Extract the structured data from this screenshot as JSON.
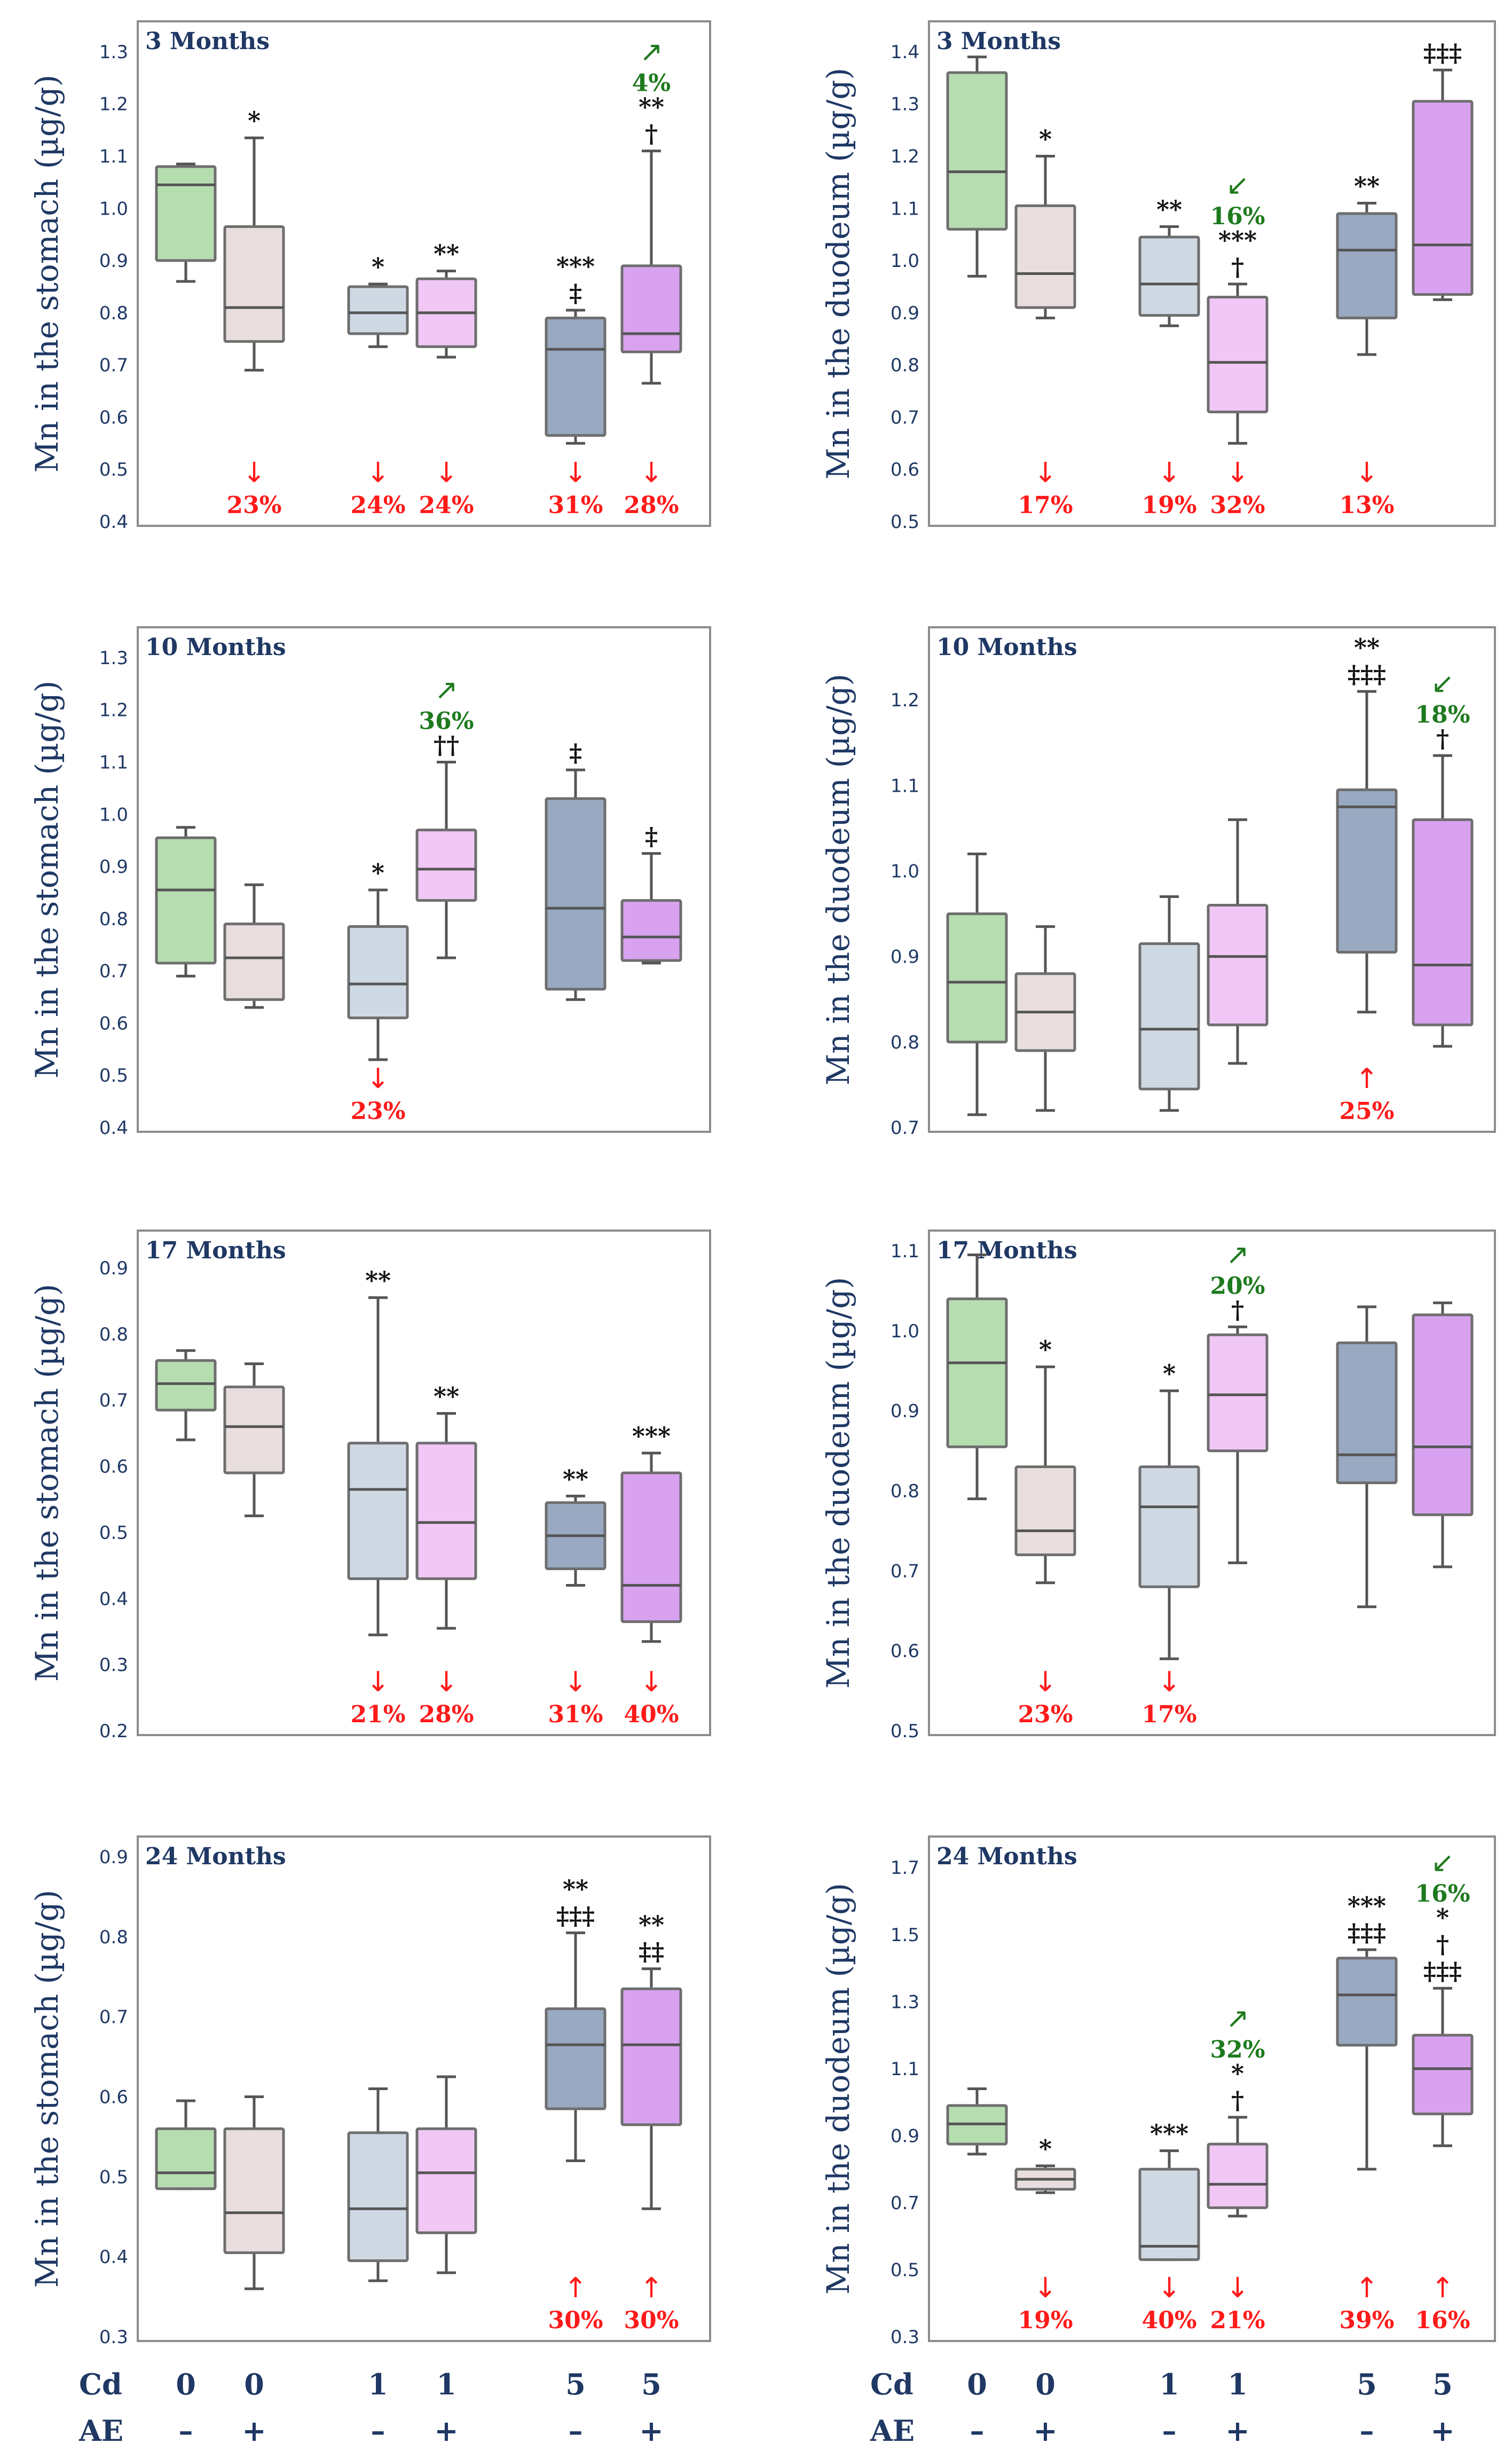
{
  "colors": {
    "g0m": "#b6ddb0",
    "g0p": "#e8dede",
    "g1m": "#cfd9e3",
    "g1p": "#f0c7f5",
    "g5m": "#98a9c1",
    "g5p": "#d8a2f0",
    "axis_text": "#1f3864",
    "red": "#ff1a1a",
    "green": "#1e7a1e"
  },
  "x_axis": {
    "cd_label": "Cd",
    "ae_label": "AE",
    "cd_values": [
      "0",
      "0",
      "1",
      "1",
      "5",
      "5"
    ],
    "ae_values": [
      "–",
      "+",
      "–",
      "+",
      "–",
      "+"
    ]
  },
  "chart_data": [
    {
      "type": "box",
      "title": "3 Months",
      "ylabel": "Mn in the stomach (µg/g)",
      "ylim": [
        0.4,
        1.35
      ],
      "yticks": [
        "0.4",
        "0.5",
        "0.6",
        "0.7",
        "0.8",
        "0.9",
        "1.0",
        "1.1",
        "1.2",
        "1.3"
      ],
      "groups": [
        {
          "min": 0.86,
          "q1": 0.9,
          "median": 1.045,
          "q3": 1.08,
          "max": 1.085
        },
        {
          "min": 0.69,
          "q1": 0.745,
          "median": 0.81,
          "q3": 0.965,
          "max": 1.135,
          "sig": [
            "*"
          ],
          "red": {
            "dir": "↓",
            "pct": "23%"
          }
        },
        {
          "min": 0.735,
          "q1": 0.76,
          "median": 0.8,
          "q3": 0.85,
          "max": 0.855,
          "sig": [
            "*"
          ],
          "red": {
            "dir": "↓",
            "pct": "24%"
          }
        },
        {
          "min": 0.715,
          "q1": 0.735,
          "median": 0.8,
          "q3": 0.865,
          "max": 0.88,
          "sig": [
            "**"
          ],
          "red": {
            "dir": "↓",
            "pct": "24%"
          }
        },
        {
          "min": 0.55,
          "q1": 0.565,
          "median": 0.73,
          "q3": 0.79,
          "max": 0.805,
          "sig": [
            "***",
            "‡"
          ],
          "red": {
            "dir": "↓",
            "pct": "31%"
          }
        },
        {
          "min": 0.665,
          "q1": 0.725,
          "median": 0.76,
          "q3": 0.89,
          "max": 1.11,
          "sig": [
            "**",
            "†"
          ],
          "green": {
            "dir": "↗",
            "pct": "4%"
          },
          "red": {
            "dir": "↓",
            "pct": "28%"
          }
        }
      ]
    },
    {
      "type": "box",
      "title": "3 Months",
      "ylabel": "Mn in the duodeum (µg/g)",
      "ylim": [
        0.5,
        1.45
      ],
      "yticks": [
        "0.5",
        "0.6",
        "0.7",
        "0.8",
        "0.9",
        "1.0",
        "1.1",
        "1.2",
        "1.3",
        "1.4"
      ],
      "groups": [
        {
          "min": 0.97,
          "q1": 1.06,
          "median": 1.17,
          "q3": 1.36,
          "max": 1.39
        },
        {
          "min": 0.89,
          "q1": 0.91,
          "median": 0.975,
          "q3": 1.105,
          "max": 1.2,
          "sig": [
            "*"
          ],
          "red": {
            "dir": "↓",
            "pct": "17%"
          }
        },
        {
          "min": 0.875,
          "q1": 0.895,
          "median": 0.955,
          "q3": 1.045,
          "max": 1.065,
          "sig": [
            "**"
          ],
          "red": {
            "dir": "↓",
            "pct": "19%"
          }
        },
        {
          "min": 0.65,
          "q1": 0.71,
          "median": 0.805,
          "q3": 0.93,
          "max": 0.955,
          "sig": [
            "***",
            "†"
          ],
          "green": {
            "dir": "↙",
            "pct": "16%"
          },
          "red": {
            "dir": "↓",
            "pct": "32%"
          }
        },
        {
          "min": 0.82,
          "q1": 0.89,
          "median": 1.02,
          "q3": 1.09,
          "max": 1.11,
          "sig": [
            "**"
          ],
          "red": {
            "dir": "↓",
            "pct": "13%"
          }
        },
        {
          "min": 0.925,
          "q1": 0.935,
          "median": 1.03,
          "q3": 1.305,
          "max": 1.365,
          "sig": [
            "‡‡‡"
          ]
        }
      ]
    },
    {
      "type": "box",
      "title": "10 Months",
      "ylabel": "Mn in the stomach (µg/g)",
      "ylim": [
        0.4,
        1.35
      ],
      "yticks": [
        "0.4",
        "0.5",
        "0.6",
        "0.7",
        "0.8",
        "0.9",
        "1.0",
        "1.1",
        "1.2",
        "1.3"
      ],
      "groups": [
        {
          "min": 0.69,
          "q1": 0.715,
          "median": 0.855,
          "q3": 0.955,
          "max": 0.975
        },
        {
          "min": 0.63,
          "q1": 0.645,
          "median": 0.725,
          "q3": 0.79,
          "max": 0.865
        },
        {
          "min": 0.53,
          "q1": 0.61,
          "median": 0.675,
          "q3": 0.785,
          "max": 0.855,
          "sig": [
            "*"
          ],
          "red": {
            "dir": "↓",
            "pct": "23%"
          }
        },
        {
          "min": 0.725,
          "q1": 0.835,
          "median": 0.895,
          "q3": 0.97,
          "max": 1.1,
          "sig": [
            "††"
          ],
          "green": {
            "dir": "↗",
            "pct": "36%"
          }
        },
        {
          "min": 0.645,
          "q1": 0.665,
          "median": 0.82,
          "q3": 1.03,
          "max": 1.085,
          "sig": [
            "‡"
          ]
        },
        {
          "min": 0.715,
          "q1": 0.72,
          "median": 0.765,
          "q3": 0.835,
          "max": 0.925,
          "sig": [
            "‡"
          ]
        }
      ]
    },
    {
      "type": "box",
      "title": "10 Months",
      "ylabel": "Mn in the duodeum (µg/g)",
      "ylim": [
        0.7,
        1.28
      ],
      "yticks": [
        "0.7",
        "0.8",
        "0.9",
        "1.0",
        "1.1",
        "1.2"
      ],
      "groups": [
        {
          "min": 0.715,
          "q1": 0.8,
          "median": 0.87,
          "q3": 0.95,
          "max": 1.02
        },
        {
          "min": 0.72,
          "q1": 0.79,
          "median": 0.835,
          "q3": 0.88,
          "max": 0.935
        },
        {
          "min": 0.72,
          "q1": 0.745,
          "median": 0.815,
          "q3": 0.915,
          "max": 0.97
        },
        {
          "min": 0.775,
          "q1": 0.82,
          "median": 0.9,
          "q3": 0.96,
          "max": 1.06
        },
        {
          "min": 0.835,
          "q1": 0.905,
          "median": 1.075,
          "q3": 1.095,
          "max": 1.21,
          "sig": [
            "**",
            "‡‡‡"
          ],
          "red": {
            "dir": "↑",
            "pct": "25%"
          }
        },
        {
          "min": 0.795,
          "q1": 0.82,
          "median": 0.89,
          "q3": 1.06,
          "max": 1.135,
          "sig": [
            "†"
          ],
          "green": {
            "dir": "↙",
            "pct": "18%"
          }
        }
      ]
    },
    {
      "type": "box",
      "title": "17 Months",
      "ylabel": "Mn in the stomach (µg/g)",
      "ylim": [
        0.2,
        0.95
      ],
      "yticks": [
        "0.2",
        "0.3",
        "0.4",
        "0.5",
        "0.6",
        "0.7",
        "0.8",
        "0.9"
      ],
      "groups": [
        {
          "min": 0.64,
          "q1": 0.685,
          "median": 0.725,
          "q3": 0.76,
          "max": 0.775
        },
        {
          "min": 0.525,
          "q1": 0.59,
          "median": 0.66,
          "q3": 0.72,
          "max": 0.755
        },
        {
          "min": 0.345,
          "q1": 0.43,
          "median": 0.565,
          "q3": 0.635,
          "max": 0.855,
          "sig": [
            "**"
          ],
          "red": {
            "dir": "↓",
            "pct": "21%"
          }
        },
        {
          "min": 0.355,
          "q1": 0.43,
          "median": 0.515,
          "q3": 0.635,
          "max": 0.68,
          "sig": [
            "**"
          ],
          "red": {
            "dir": "↓",
            "pct": "28%"
          }
        },
        {
          "min": 0.42,
          "q1": 0.445,
          "median": 0.495,
          "q3": 0.545,
          "max": 0.555,
          "sig": [
            "**"
          ],
          "red": {
            "dir": "↓",
            "pct": "31%"
          }
        },
        {
          "min": 0.335,
          "q1": 0.365,
          "median": 0.42,
          "q3": 0.59,
          "max": 0.62,
          "sig": [
            "***"
          ],
          "red": {
            "dir": "↓",
            "pct": "40%"
          }
        }
      ]
    },
    {
      "type": "box",
      "title": "17 Months",
      "ylabel": "Mn in the duodeum (µg/g)",
      "ylim": [
        0.5,
        1.12
      ],
      "yticks": [
        "0.5",
        "0.6",
        "0.7",
        "0.8",
        "0.9",
        "1.0",
        "1.1"
      ],
      "groups": [
        {
          "min": 0.79,
          "q1": 0.855,
          "median": 0.96,
          "q3": 1.04,
          "max": 1.095
        },
        {
          "min": 0.685,
          "q1": 0.72,
          "median": 0.75,
          "q3": 0.83,
          "max": 0.955,
          "sig": [
            "*"
          ],
          "red": {
            "dir": "↓",
            "pct": "23%"
          }
        },
        {
          "min": 0.59,
          "q1": 0.68,
          "median": 0.78,
          "q3": 0.83,
          "max": 0.925,
          "sig": [
            "*"
          ],
          "red": {
            "dir": "↓",
            "pct": "17%"
          }
        },
        {
          "min": 0.71,
          "q1": 0.85,
          "median": 0.92,
          "q3": 0.995,
          "max": 1.005,
          "sig": [
            "†"
          ],
          "green": {
            "dir": "↗",
            "pct": "20%"
          }
        },
        {
          "min": 0.655,
          "q1": 0.81,
          "median": 0.845,
          "q3": 0.985,
          "max": 1.03
        },
        {
          "min": 0.705,
          "q1": 0.77,
          "median": 0.855,
          "q3": 1.02,
          "max": 1.035
        }
      ]
    },
    {
      "type": "box",
      "title": "24 Months",
      "ylabel": "Mn in the stomach (µg/g)",
      "ylim": [
        0.3,
        0.92
      ],
      "yticks": [
        "0.3",
        "0.4",
        "0.5",
        "0.6",
        "0.7",
        "0.8",
        "0.9"
      ],
      "groups": [
        {
          "min": 0.485,
          "q1": 0.485,
          "median": 0.505,
          "q3": 0.56,
          "max": 0.595
        },
        {
          "min": 0.36,
          "q1": 0.405,
          "median": 0.455,
          "q3": 0.56,
          "max": 0.6
        },
        {
          "min": 0.37,
          "q1": 0.395,
          "median": 0.46,
          "q3": 0.555,
          "max": 0.61
        },
        {
          "min": 0.38,
          "q1": 0.43,
          "median": 0.505,
          "q3": 0.56,
          "max": 0.625
        },
        {
          "min": 0.52,
          "q1": 0.585,
          "median": 0.665,
          "q3": 0.71,
          "max": 0.805,
          "sig": [
            "**",
            "‡‡‡"
          ],
          "red": {
            "dir": "↑",
            "pct": "30%"
          }
        },
        {
          "min": 0.46,
          "q1": 0.565,
          "median": 0.665,
          "q3": 0.735,
          "max": 0.76,
          "sig": [
            "**",
            "‡‡"
          ],
          "red": {
            "dir": "↑",
            "pct": "30%"
          }
        }
      ]
    },
    {
      "type": "box",
      "title": "24 Months",
      "ylabel": "Mn in the duodeum (µg/g)",
      "ylim": [
        0.3,
        1.78
      ],
      "yticks": [
        "0.3",
        "0.5",
        "0.7",
        "0.9",
        "1.1",
        "1.3",
        "1.5",
        "1.7"
      ],
      "groups": [
        {
          "min": 0.845,
          "q1": 0.875,
          "median": 0.935,
          "q3": 0.99,
          "max": 1.04
        },
        {
          "min": 0.73,
          "q1": 0.74,
          "median": 0.77,
          "q3": 0.8,
          "max": 0.81,
          "sig": [
            "*"
          ],
          "red": {
            "dir": "↓",
            "pct": "19%"
          }
        },
        {
          "min": 0.53,
          "q1": 0.53,
          "median": 0.57,
          "q3": 0.8,
          "max": 0.855,
          "sig": [
            "***"
          ],
          "red": {
            "dir": "↓",
            "pct": "40%"
          }
        },
        {
          "min": 0.66,
          "q1": 0.685,
          "median": 0.755,
          "q3": 0.875,
          "max": 0.955,
          "sig": [
            "*",
            "†"
          ],
          "green": {
            "dir": "↗",
            "pct": "32%"
          },
          "red": {
            "dir": "↓",
            "pct": "21%"
          }
        },
        {
          "min": 0.8,
          "q1": 1.17,
          "median": 1.32,
          "q3": 1.43,
          "max": 1.455,
          "sig": [
            "***",
            "‡‡‡"
          ],
          "red": {
            "dir": "↑",
            "pct": "39%"
          }
        },
        {
          "min": 0.87,
          "q1": 0.965,
          "median": 1.1,
          "q3": 1.2,
          "max": 1.34,
          "sig": [
            "*",
            "†",
            "‡‡‡"
          ],
          "green": {
            "dir": "↙",
            "pct": "16%"
          },
          "red": {
            "dir": "↑",
            "pct": "16%"
          }
        }
      ]
    }
  ]
}
